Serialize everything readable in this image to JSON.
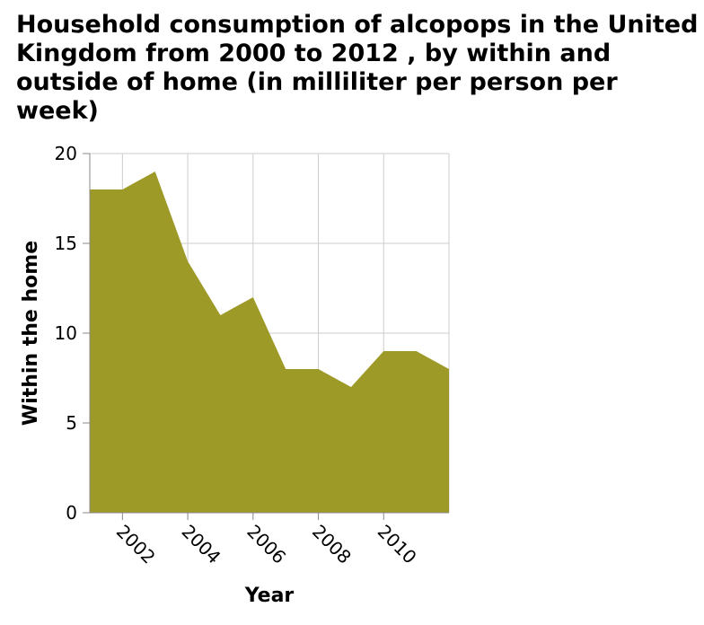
{
  "chart_data": {
    "type": "area",
    "title": "Household consumption of alcopops in the United Kingdom from 2000 to 2012 , by within and outside of home (in milliliter per person per week)",
    "xlabel": "Year",
    "ylabel": "Within the home",
    "x": [
      2001,
      2002,
      2003,
      2004,
      2005,
      2006,
      2007,
      2008,
      2009,
      2010,
      2011,
      2012
    ],
    "series": [
      {
        "values": [
          18,
          18,
          19,
          14,
          11,
          12,
          8,
          8,
          7,
          9,
          9,
          8
        ]
      }
    ],
    "xlim": [
      2001,
      2012
    ],
    "ylim": [
      0,
      20
    ],
    "xticks": [
      2002,
      2004,
      2006,
      2008,
      2010
    ],
    "xtick_labels": [
      "2002",
      "2004",
      "2006",
      "2008",
      "2010"
    ],
    "yticks": [
      0,
      5,
      10,
      15,
      20
    ],
    "ytick_labels": [
      "0",
      "5",
      "10",
      "15",
      "20"
    ],
    "grid": true,
    "fill_color": "#9e9a28"
  }
}
